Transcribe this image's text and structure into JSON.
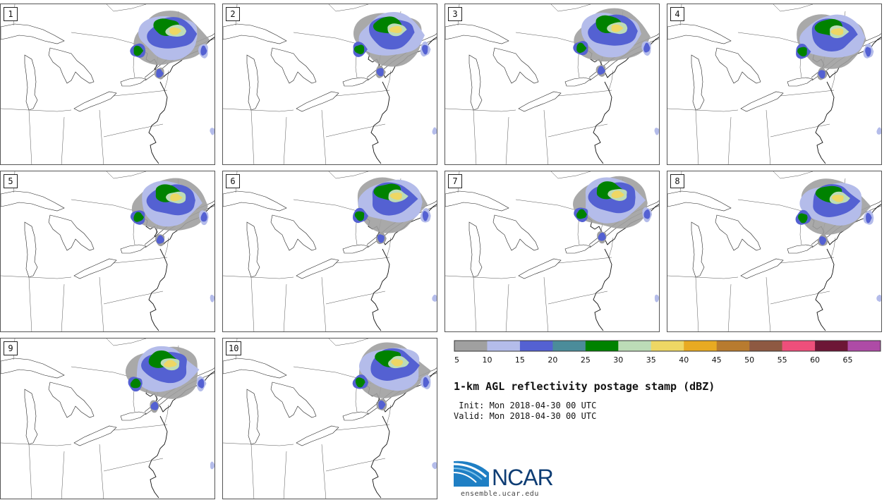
{
  "panels": [
    {
      "label": "1"
    },
    {
      "label": "2"
    },
    {
      "label": "3"
    },
    {
      "label": "4"
    },
    {
      "label": "5"
    },
    {
      "label": "6"
    },
    {
      "label": "7"
    },
    {
      "label": "8"
    },
    {
      "label": "9"
    },
    {
      "label": "10"
    }
  ],
  "colorbar": {
    "colors": [
      "#a0a0a0",
      "#b4bcea",
      "#5461d2",
      "#4b8c9a",
      "#008200",
      "#bcdcb7",
      "#eed764",
      "#e8aa22",
      "#b87b2f",
      "#8e5942",
      "#ee4f7b",
      "#6d1636",
      "#ae4ba6"
    ],
    "tick_labels": [
      "5",
      "10",
      "15",
      "20",
      "25",
      "30",
      "35",
      "40",
      "45",
      "50",
      "55",
      "60",
      "65"
    ]
  },
  "title": "1-km AGL reflectivity postage stamp (dBZ)",
  "init_line": " Init: Mon 2018-04-30 00 UTC",
  "valid_line": "Valid: Mon 2018-04-30 00 UTC",
  "logo": {
    "text": "NCAR",
    "site": "ensemble.ucar.edu"
  }
}
